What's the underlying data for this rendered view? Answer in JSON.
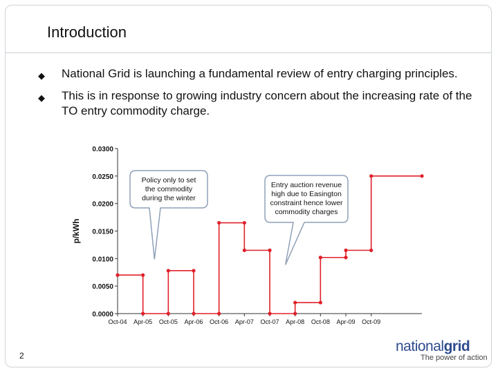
{
  "slide": {
    "title": "Introduction",
    "page_number": "2",
    "bullets": [
      "National Grid is launching a fundamental review of entry charging principles.",
      "This is in response to growing industry concern about the increasing rate of the TO entry commodity charge."
    ],
    "logo_text_a": "national",
    "logo_text_b": "grid",
    "tagline": "The power of action"
  },
  "colors": {
    "series": "#e0202a",
    "callout_fill": "#ffffff",
    "callout_stroke": "#8fa0b8",
    "text": "#111111"
  },
  "chart_data": {
    "type": "line",
    "ylabel": "p/kWh",
    "ylim": [
      0,
      0.03
    ],
    "yticks": [
      "0.0300",
      "0.0250",
      "0.0200",
      "0.0150",
      "0.0100",
      "0.0050",
      "0.0000"
    ],
    "xticks": [
      "Oct-04",
      "Apr-05",
      "Oct-05",
      "Apr-06",
      "Oct-06",
      "Apr-07",
      "Oct-07",
      "Apr-08",
      "Oct-08",
      "Apr-09",
      "Oct-09"
    ],
    "grid": false,
    "series": [
      {
        "points": [
          [
            "Oct-04",
            0.007
          ],
          [
            "Apr-05",
            0.007
          ],
          [
            "Apr-05",
            0.0
          ],
          [
            "Oct-05",
            0.0
          ],
          [
            "Oct-05",
            0.0078
          ],
          [
            "Apr-06",
            0.0078
          ],
          [
            "Apr-06",
            0.0
          ],
          [
            "Oct-06",
            0.0
          ],
          [
            "Oct-06",
            0.0165
          ],
          [
            "Apr-07",
            0.0165
          ],
          [
            "Apr-07",
            0.0115
          ],
          [
            "Oct-07",
            0.0115
          ],
          [
            "Oct-07",
            0.0
          ],
          [
            "Apr-08",
            0.0
          ],
          [
            "Apr-08",
            0.002
          ],
          [
            "Oct-08",
            0.002
          ],
          [
            "Oct-08",
            0.0102
          ],
          [
            "Apr-09",
            0.0102
          ],
          [
            "Apr-09",
            0.0115
          ],
          [
            "Oct-09",
            0.0115
          ],
          [
            "Oct-09",
            0.025
          ],
          [
            "Oct-10",
            0.025
          ]
        ]
      }
    ],
    "annotations": [
      {
        "text": [
          "Policy only to set",
          "the commodity",
          "during the winter"
        ],
        "points_to": [
          "Oct-05",
          0.01
        ]
      },
      {
        "text": [
          "Entry auction revenue",
          "high due to Easington",
          "constraint hence lower",
          "commodity charges"
        ],
        "points_to": [
          "Apr-08",
          0.009
        ]
      }
    ]
  }
}
